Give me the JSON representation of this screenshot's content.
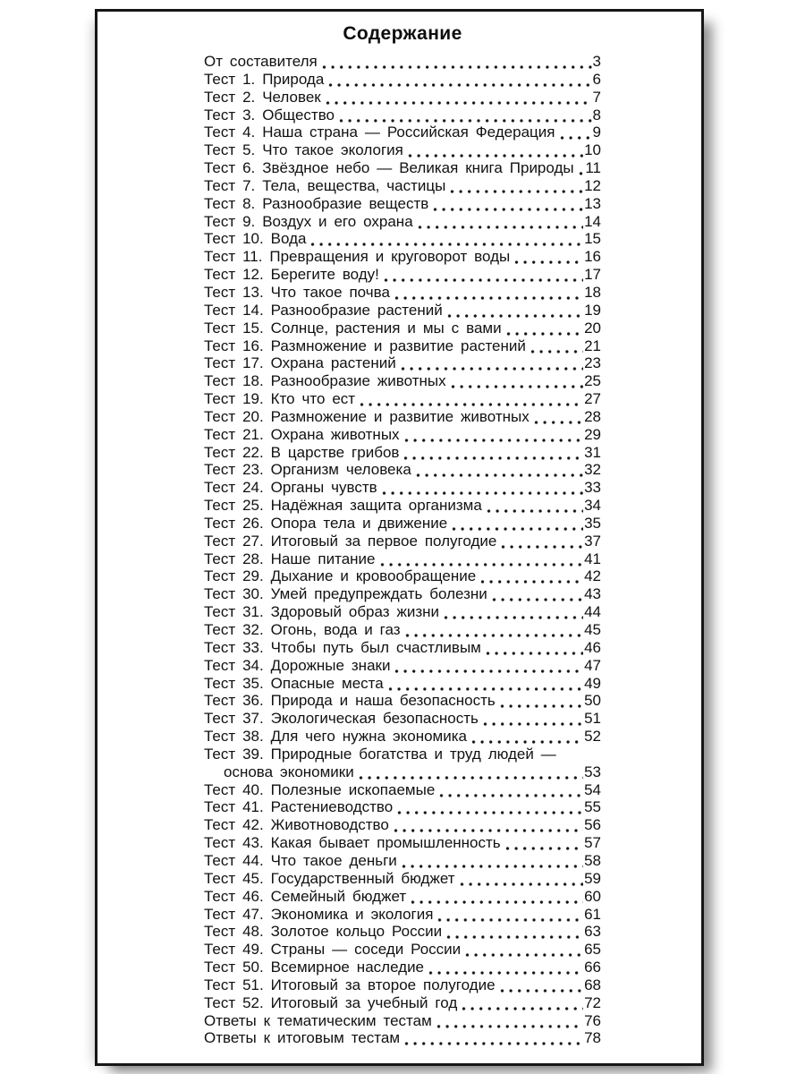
{
  "page": {
    "title": "Содержание",
    "toc": {
      "entries": [
        {
          "label": "От составителя",
          "page": "3"
        },
        {
          "label": "Тест 1. Природа",
          "page": "6"
        },
        {
          "label": "Тест 2. Человек",
          "page": "7"
        },
        {
          "label": "Тест 3. Общество",
          "page": "8"
        },
        {
          "label": "Тест 4. Наша страна — Российская Федерация",
          "page": "9"
        },
        {
          "label": "Тест 5. Что такое экология",
          "page": "10"
        },
        {
          "label": "Тест 6. Звёздное небо — Великая книга Природы",
          "page": "11"
        },
        {
          "label": "Тест 7. Тела, вещества, частицы",
          "page": "12"
        },
        {
          "label": "Тест 8. Разнообразие веществ",
          "page": "13"
        },
        {
          "label": "Тест 9. Воздух и его охрана",
          "page": "14"
        },
        {
          "label": "Тест 10. Вода",
          "page": "15"
        },
        {
          "label": "Тест 11. Превращения и круговорот воды",
          "page": "16"
        },
        {
          "label": "Тест 12. Берегите воду!",
          "page": "17"
        },
        {
          "label": "Тест 13. Что такое почва",
          "page": "18"
        },
        {
          "label": "Тест 14. Разнообразие растений",
          "page": "19"
        },
        {
          "label": "Тест 15. Солнце, растения и мы с вами",
          "page": "20"
        },
        {
          "label": "Тест 16. Размножение и развитие растений",
          "page": "21"
        },
        {
          "label": "Тест 17. Охрана растений",
          "page": "23"
        },
        {
          "label": "Тест 18. Разнообразие животных",
          "page": "25"
        },
        {
          "label": "Тест 19. Кто что ест",
          "page": "27"
        },
        {
          "label": "Тест 20. Размножение и развитие животных",
          "page": "28"
        },
        {
          "label": "Тест 21. Охрана животных",
          "page": "29"
        },
        {
          "label": "Тест 22. В царстве грибов",
          "page": "31"
        },
        {
          "label": "Тест 23. Организм человека",
          "page": "32"
        },
        {
          "label": "Тест 24. Органы чувств",
          "page": "33"
        },
        {
          "label": "Тест 25. Надёжная защита организма",
          "page": "34"
        },
        {
          "label": "Тест 26. Опора тела и движение",
          "page": "35"
        },
        {
          "label": "Тест 27. Итоговый за первое полугодие",
          "page": "37"
        },
        {
          "label": "Тест 28. Наше питание",
          "page": "41"
        },
        {
          "label": "Тест 29. Дыхание и кровообращение",
          "page": "42"
        },
        {
          "label": "Тест 30. Умей предупреждать болезни",
          "page": "43"
        },
        {
          "label": "Тест 31. Здоровый образ жизни",
          "page": "44"
        },
        {
          "label": "Тест 32. Огонь, вода и газ",
          "page": "45"
        },
        {
          "label": "Тест 33. Чтобы путь был счастливым",
          "page": "46"
        },
        {
          "label": "Тест 34. Дорожные знаки",
          "page": "47"
        },
        {
          "label": "Тест 35. Опасные места",
          "page": "49"
        },
        {
          "label": "Тест 36. Природа и наша безопасность",
          "page": "50"
        },
        {
          "label": "Тест 37. Экологическая безопасность",
          "page": "51"
        },
        {
          "label": "Тест 38. Для чего нужна экономика",
          "page": "52"
        },
        {
          "label": "Тест 39. Природные богатства и труд людей —",
          "label2": "основа экономики",
          "page": "53"
        },
        {
          "label": "Тест 40. Полезные ископаемые",
          "page": "54"
        },
        {
          "label": "Тест 41. Растениеводство",
          "page": "55"
        },
        {
          "label": "Тест 42. Животноводство",
          "page": "56"
        },
        {
          "label": "Тест 43. Какая бывает промышленность",
          "page": "57"
        },
        {
          "label": "Тест 44. Что такое деньги",
          "page": "58"
        },
        {
          "label": "Тест 45. Государственный бюджет",
          "page": "59"
        },
        {
          "label": "Тест 46. Семейный бюджет",
          "page": "60"
        },
        {
          "label": "Тест 47. Экономика и экология",
          "page": "61"
        },
        {
          "label": "Тест 48. Золотое кольцо России",
          "page": "63"
        },
        {
          "label": "Тест 49. Страны — соседи России",
          "page": "65"
        },
        {
          "label": "Тест 50. Всемирное наследие",
          "page": "66"
        },
        {
          "label": "Тест 51. Итоговый за второе полугодие",
          "page": "68"
        },
        {
          "label": "Тест 52. Итоговый за учебный год",
          "page": "72"
        },
        {
          "label": "Ответы к тематическим тестам",
          "page": "76"
        },
        {
          "label": "Ответы к итоговым тестам",
          "page": "78"
        }
      ]
    }
  }
}
